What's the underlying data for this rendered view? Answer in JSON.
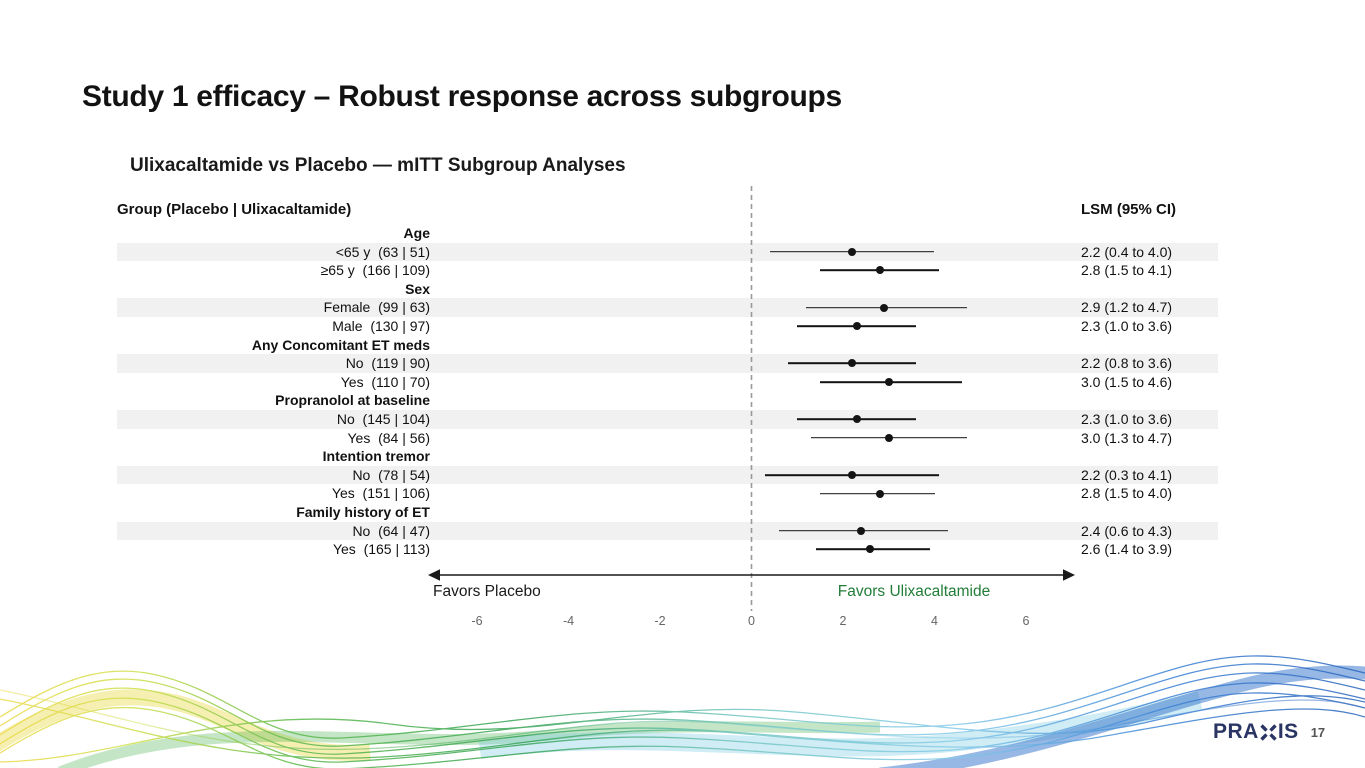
{
  "slide": {
    "title": "Study 1 efficacy – Robust response across subgroups",
    "page_number": "17",
    "brand": {
      "pre": "PRA",
      "post": "IS"
    }
  },
  "chart_data": {
    "type": "forest",
    "title": "Ulixacaltamide vs Placebo — mITT Subgroup Analyses",
    "columns": {
      "group_header": "Group (Placebo | Ulixacaltamide)",
      "estimate_header": "LSM (95% CI)"
    },
    "axis": {
      "ticks": [
        -6,
        -4,
        -2,
        0,
        2,
        4,
        6
      ],
      "xlim": [
        -7.07,
        7.07
      ],
      "zero_line": 0
    },
    "favors": {
      "left": "Favors Placebo",
      "right": "Favors Ulixacaltamide",
      "right_color": "#217d38"
    },
    "colors": {
      "shaded_row": "#f1f1f1",
      "marker": "#141414",
      "favors_right_text": "#217d38"
    },
    "rows": [
      {
        "kind": "header",
        "label": "Age"
      },
      {
        "kind": "data",
        "label": "<65 y  (63 | 51)",
        "est": 2.2,
        "lo": 0.4,
        "hi": 4.0,
        "ci": "2.2 (0.4 to 4.0)",
        "shaded": true
      },
      {
        "kind": "data",
        "label": "≥65 y  (166 | 109)",
        "est": 2.8,
        "lo": 1.5,
        "hi": 4.1,
        "ci": "2.8 (1.5 to 4.1)",
        "shaded": false
      },
      {
        "kind": "header",
        "label": "Sex"
      },
      {
        "kind": "data",
        "label": "Female  (99 | 63)",
        "est": 2.9,
        "lo": 1.2,
        "hi": 4.7,
        "ci": "2.9 (1.2 to 4.7)",
        "shaded": true
      },
      {
        "kind": "data",
        "label": "Male  (130 | 97)",
        "est": 2.3,
        "lo": 1.0,
        "hi": 3.6,
        "ci": "2.3 (1.0 to 3.6)",
        "shaded": false
      },
      {
        "kind": "header",
        "label": "Any Concomitant ET meds"
      },
      {
        "kind": "data",
        "label": "No  (119 | 90)",
        "est": 2.2,
        "lo": 0.8,
        "hi": 3.6,
        "ci": "2.2 (0.8 to 3.6)",
        "shaded": true
      },
      {
        "kind": "data",
        "label": "Yes  (110 | 70)",
        "est": 3.0,
        "lo": 1.5,
        "hi": 4.6,
        "ci": "3.0 (1.5 to 4.6)",
        "shaded": false
      },
      {
        "kind": "header",
        "label": "Propranolol at baseline"
      },
      {
        "kind": "data",
        "label": "No  (145 | 104)",
        "est": 2.3,
        "lo": 1.0,
        "hi": 3.6,
        "ci": "2.3 (1.0 to 3.6)",
        "shaded": true
      },
      {
        "kind": "data",
        "label": "Yes  (84 | 56)",
        "est": 3.0,
        "lo": 1.3,
        "hi": 4.7,
        "ci": "3.0 (1.3 to 4.7)",
        "shaded": false
      },
      {
        "kind": "header",
        "label": "Intention tremor"
      },
      {
        "kind": "data",
        "label": "No  (78 | 54)",
        "est": 2.2,
        "lo": 0.3,
        "hi": 4.1,
        "ci": "2.2 (0.3 to 4.1)",
        "shaded": true
      },
      {
        "kind": "data",
        "label": "Yes  (151 | 106)",
        "est": 2.8,
        "lo": 1.5,
        "hi": 4.0,
        "ci": "2.8 (1.5 to 4.0)",
        "shaded": false
      },
      {
        "kind": "header",
        "label": "Family history of ET"
      },
      {
        "kind": "data",
        "label": "No  (64 | 47)",
        "est": 2.4,
        "lo": 0.6,
        "hi": 4.3,
        "ci": "2.4 (0.6 to 4.3)",
        "shaded": true
      },
      {
        "kind": "data",
        "label": "Yes  (165 | 113)",
        "est": 2.6,
        "lo": 1.4,
        "hi": 3.9,
        "ci": "2.6 (1.4 to 3.9)",
        "shaded": false
      }
    ]
  }
}
